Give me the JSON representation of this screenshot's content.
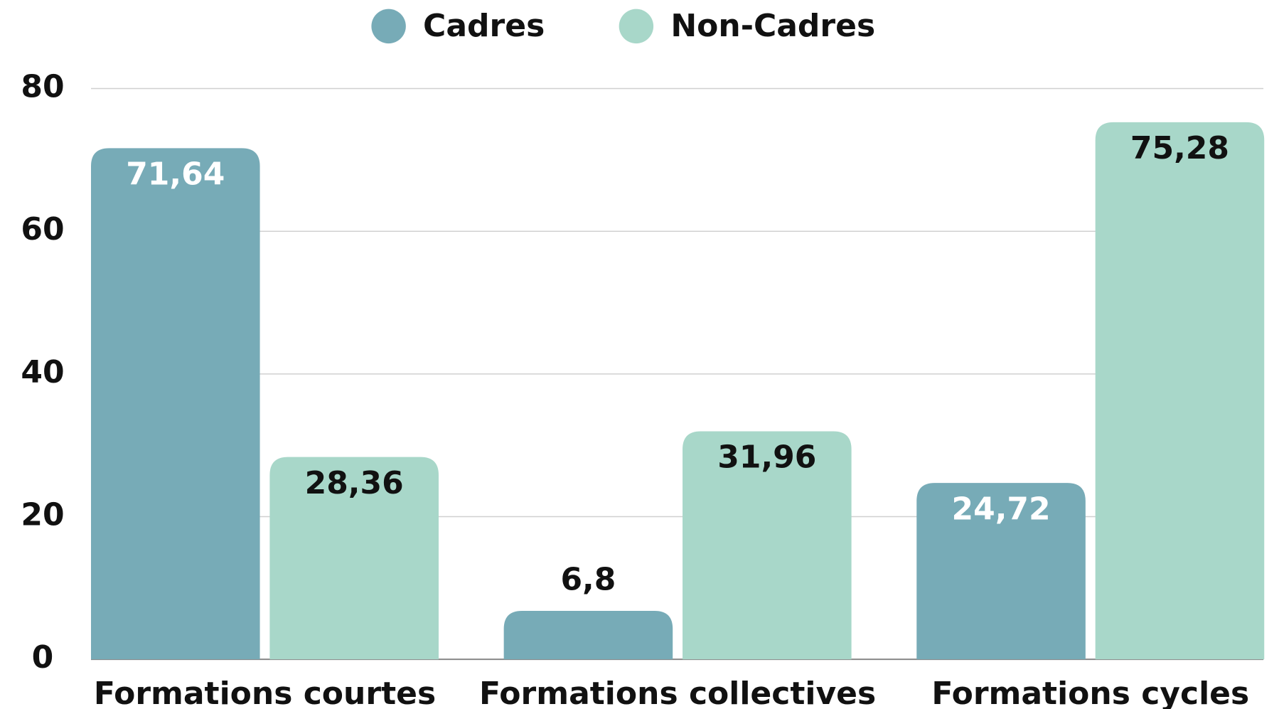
{
  "chart_data": {
    "type": "bar",
    "categories": [
      "Formations courtes",
      "Formations collectives",
      "Formations cycles"
    ],
    "series": [
      {
        "name": "Cadres",
        "color": "#77abb7",
        "label_color": "#ffffff",
        "values": [
          71.64,
          6.8,
          24.72
        ],
        "value_labels": [
          "71,64",
          "6,8",
          "24,72"
        ]
      },
      {
        "name": "Non-Cadres",
        "color": "#a8d7c9",
        "label_color": "#111111",
        "values": [
          28.36,
          31.96,
          75.28
        ],
        "value_labels": [
          "28,36",
          "31,96",
          "75,28"
        ]
      }
    ],
    "ylim": [
      0,
      80
    ],
    "yticks": [
      0,
      20,
      40,
      60,
      80
    ],
    "grid": true,
    "legend": "top"
  }
}
